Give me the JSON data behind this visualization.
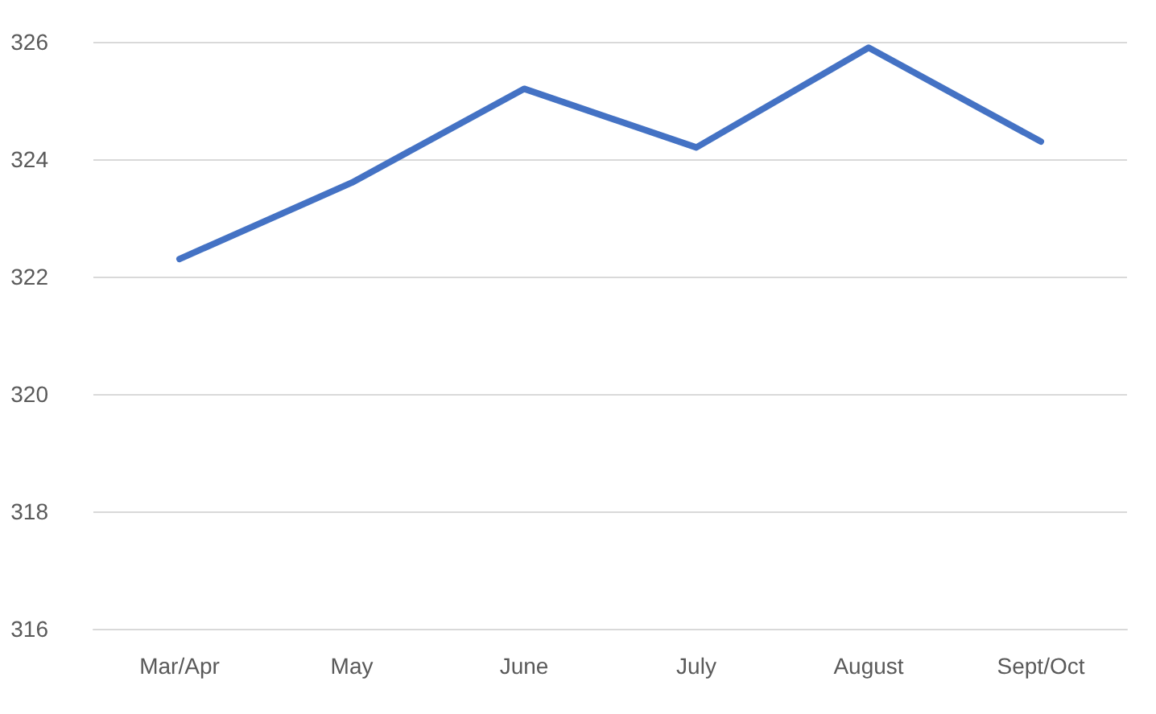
{
  "chart_data": {
    "type": "line",
    "categories": [
      "Mar/Apr",
      "May",
      "June",
      "July",
      "August",
      "Sept/Oct"
    ],
    "series": [
      {
        "color": "#4472c4",
        "values": [
          322.3,
          323.6,
          325.2,
          324.2,
          325.9,
          324.3
        ]
      }
    ],
    "ylim": [
      316,
      326
    ],
    "yticks": [
      316,
      318,
      320,
      322,
      324,
      326
    ],
    "grid": "y",
    "marker": "none",
    "line_style": "solid"
  }
}
